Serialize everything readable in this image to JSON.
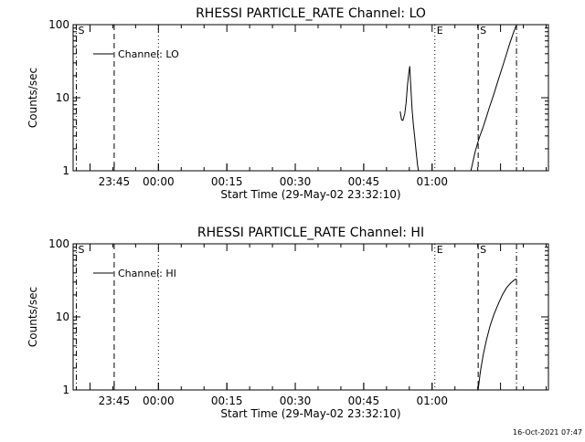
{
  "footer_timestamp": "16-Oct-2021 07:47",
  "colors": {
    "background": "#ffffff",
    "foreground": "#000000"
  },
  "chart_data": [
    {
      "type": "line",
      "title": "RHESSI PARTICLE_RATE Channel: LO",
      "xlabel": "Start Time (29-May-02 23:32:10)",
      "ylabel": "Counts/sec",
      "yscale": "log",
      "ylim": [
        1,
        100
      ],
      "xlim_minutes": [
        -18.7,
        85.5
      ],
      "xtick_labels": [
        "23:45",
        "00:00",
        "00:15",
        "00:30",
        "00:45",
        "01:00"
      ],
      "ytick_labels": [
        "1",
        "10",
        "100"
      ],
      "legend": {
        "position": "top-left",
        "entries": [
          "Channel: LO"
        ]
      },
      "markers": [
        {
          "label": "S",
          "minute": -18,
          "style": "dash-dot"
        },
        {
          "label": "",
          "minute": -9.7,
          "style": "dashed"
        },
        {
          "label": "",
          "minute": 0,
          "style": "dotted"
        },
        {
          "label": "E",
          "minute": 60.6,
          "style": "dotted"
        },
        {
          "label": "S",
          "minute": 70.1,
          "style": "dashed"
        },
        {
          "label": "",
          "minute": 78.5,
          "style": "dash-dot"
        }
      ],
      "series": [
        {
          "name": "Channel: LO",
          "segments": [
            [
              [
                53.0,
                6.5
              ],
              [
                53.3,
                5.0
              ],
              [
                53.6,
                4.9
              ],
              [
                54.0,
                6.0
              ],
              [
                54.3,
                8.5
              ],
              [
                54.6,
                15
              ],
              [
                54.9,
                22
              ],
              [
                55.1,
                27
              ],
              [
                55.3,
                15
              ],
              [
                55.6,
                7.0
              ],
              [
                55.9,
                4.2
              ],
              [
                56.2,
                2.8
              ],
              [
                56.5,
                1.8
              ],
              [
                56.8,
                1.2
              ],
              [
                57.0,
                1.0
              ]
            ],
            [
              [
                68.5,
                1.0
              ],
              [
                68.9,
                1.3
              ],
              [
                69.4,
                1.8
              ],
              [
                69.9,
                2.3
              ],
              [
                70.4,
                2.9
              ],
              [
                71.1,
                3.8
              ],
              [
                71.8,
                5.2
              ],
              [
                72.6,
                7.5
              ],
              [
                73.5,
                11
              ],
              [
                74.3,
                16
              ],
              [
                75.2,
                24
              ],
              [
                76.1,
                36
              ],
              [
                77.0,
                55
              ],
              [
                77.9,
                80
              ],
              [
                78.5,
                100
              ]
            ]
          ]
        }
      ]
    },
    {
      "type": "line",
      "title": "RHESSI PARTICLE_RATE Channel: HI",
      "xlabel": "Start Time (29-May-02 23:32:10)",
      "ylabel": "Counts/sec",
      "yscale": "log",
      "ylim": [
        1,
        100
      ],
      "xlim_minutes": [
        -18.7,
        85.5
      ],
      "xtick_labels": [
        "23:45",
        "00:00",
        "00:15",
        "00:30",
        "00:45",
        "01:00"
      ],
      "ytick_labels": [
        "1",
        "10",
        "100"
      ],
      "legend": {
        "position": "top-left",
        "entries": [
          "Channel: HI"
        ]
      },
      "markers": [
        {
          "label": "S",
          "minute": -18,
          "style": "dash-dot"
        },
        {
          "label": "",
          "minute": -9.7,
          "style": "dashed"
        },
        {
          "label": "",
          "minute": 0,
          "style": "dotted"
        },
        {
          "label": "E",
          "minute": 60.6,
          "style": "dotted"
        },
        {
          "label": "S",
          "minute": 70.1,
          "style": "dashed"
        },
        {
          "label": "",
          "minute": 78.5,
          "style": "dash-dot"
        }
      ],
      "series": [
        {
          "name": "Channel: HI",
          "segments": [
            [
              [
                70.1,
                1.0
              ],
              [
                70.6,
                1.8
              ],
              [
                71.2,
                3.0
              ],
              [
                71.9,
                4.8
              ],
              [
                72.7,
                7.5
              ],
              [
                73.6,
                11
              ],
              [
                74.5,
                15
              ],
              [
                75.4,
                20
              ],
              [
                76.3,
                25
              ],
              [
                77.2,
                29
              ],
              [
                78.0,
                32
              ],
              [
                78.5,
                33
              ]
            ]
          ]
        }
      ]
    }
  ]
}
